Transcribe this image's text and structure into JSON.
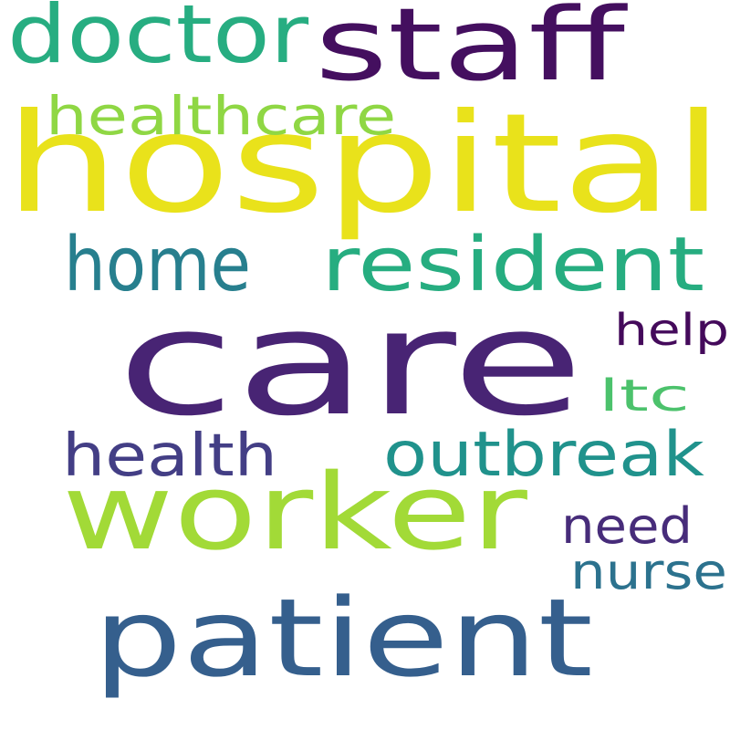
{
  "words": [
    {
      "text": "care",
      "color": "#482474"
    },
    {
      "text": "hospital",
      "color": "#e9e21b"
    },
    {
      "text": "worker",
      "color": "#a2da37"
    },
    {
      "text": "patient",
      "color": "#355f8d"
    },
    {
      "text": "staff",
      "color": "#440f5f"
    },
    {
      "text": "doctor",
      "color": "#27ad81"
    },
    {
      "text": "resident",
      "color": "#26ad80"
    },
    {
      "text": "home",
      "color": "#277f8e"
    },
    {
      "text": "outbreak",
      "color": "#20928c"
    },
    {
      "text": "health",
      "color": "#433e85"
    },
    {
      "text": "healthcare",
      "color": "#8fd744"
    },
    {
      "text": "nurse",
      "color": "#2c728e"
    },
    {
      "text": "need",
      "color": "#472c7a"
    },
    {
      "text": "help",
      "color": "#440a5b"
    },
    {
      "text": "ltc",
      "color": "#4cc26c"
    }
  ]
}
